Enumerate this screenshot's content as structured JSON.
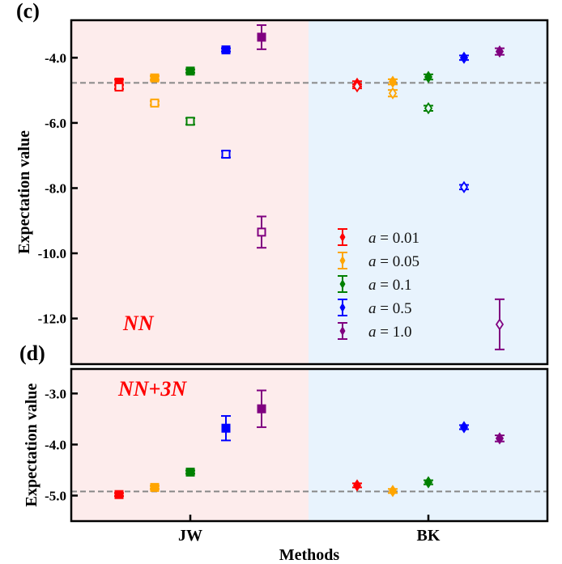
{
  "chart_data": [
    {
      "panel_label": "(c)",
      "type": "scatter",
      "subtype": "errorbar",
      "annotation": "NN",
      "xlabel": "",
      "ylabel": "Expectation value",
      "categories": [
        "JW",
        "BK"
      ],
      "ylim": [
        -13.4,
        -2.85
      ],
      "yticks": [
        -4.0,
        -6.0,
        -8.0,
        -10.0,
        -12.0
      ],
      "ytick_labels": [
        "-4.0",
        "-6.0",
        "-8.0",
        "-10.0",
        "-12.0"
      ],
      "reference_line": -4.77,
      "background_regions": [
        {
          "category": "JW",
          "color": "#fdecec"
        },
        {
          "category": "BK",
          "color": "#e8f3fd"
        }
      ],
      "legend": {
        "placement": "lower-right",
        "entries": [
          {
            "label_var": "a",
            "label_value": "= 0.01",
            "color": "#ff0000"
          },
          {
            "label_var": "a",
            "label_value": "= 0.05",
            "color": "#ffa500"
          },
          {
            "label_var": "a",
            "label_value": "= 0.1",
            "color": "#008000"
          },
          {
            "label_var": "a",
            "label_value": "= 0.5",
            "color": "#0000ff"
          },
          {
            "label_var": "a",
            "label_value": "= 1.0",
            "color": "#800080"
          }
        ]
      },
      "series": [
        {
          "name": "a = 0.01",
          "color": "#ff0000",
          "JW": {
            "filled": [
              -4.75,
              0.08
            ],
            "open": [
              -4.9,
              0.06
            ]
          },
          "BK": {
            "filled": [
              -4.8,
              0.08
            ],
            "open": [
              -4.88,
              0.06
            ]
          }
        },
        {
          "name": "a = 0.05",
          "color": "#ffa500",
          "JW": {
            "filled": [
              -4.62,
              0.06
            ],
            "open": [
              -5.39,
              0.06
            ]
          },
          "BK": {
            "filled": [
              -4.74,
              0.08
            ],
            "open": [
              -5.09,
              0.1
            ]
          }
        },
        {
          "name": "a = 0.1",
          "color": "#008000",
          "JW": {
            "filled": [
              -4.41,
              0.05
            ],
            "open": [
              -5.95,
              0.1
            ]
          },
          "BK": {
            "filled": [
              -4.59,
              0.08
            ],
            "open": [
              -5.55,
              0.08
            ]
          }
        },
        {
          "name": "a = 0.5",
          "color": "#0000ff",
          "JW": {
            "filled": [
              -3.76,
              0.05
            ],
            "open": [
              -6.96,
              0.1
            ]
          },
          "BK": {
            "filled": [
              -4.0,
              0.07
            ],
            "open": [
              -7.97,
              0.07
            ]
          }
        },
        {
          "name": "a = 1.0",
          "color": "#800080",
          "JW": {
            "filled": [
              -3.37,
              0.37
            ],
            "open": [
              -9.35,
              0.48
            ]
          },
          "BK": {
            "filled": [
              -3.81,
              0.1
            ],
            "open": [
              -12.18,
              0.77
            ]
          }
        }
      ]
    },
    {
      "panel_label": "(d)",
      "type": "scatter",
      "subtype": "errorbar",
      "annotation": "NN+3N",
      "xlabel": "Methods",
      "ylabel": "Expectation value",
      "categories": [
        "JW",
        "BK"
      ],
      "ylim": [
        -5.5,
        -2.52
      ],
      "yticks": [
        -3.0,
        -4.0,
        -5.0
      ],
      "ytick_labels": [
        "-3.0",
        "-4.0",
        "-5.0"
      ],
      "reference_line": -4.92,
      "background_regions": [
        {
          "category": "JW",
          "color": "#fdecec"
        },
        {
          "category": "BK",
          "color": "#e8f3fd"
        }
      ],
      "series": [
        {
          "name": "a = 0.01",
          "color": "#ff0000",
          "JW": {
            "filled": [
              -4.98,
              0.03
            ]
          },
          "BK": {
            "filled": [
              -4.8,
              0.04
            ]
          }
        },
        {
          "name": "a = 0.05",
          "color": "#ffa500",
          "JW": {
            "filled": [
              -4.84,
              0.03
            ]
          },
          "BK": {
            "filled": [
              -4.91,
              0.04
            ]
          }
        },
        {
          "name": "a = 0.1",
          "color": "#008000",
          "JW": {
            "filled": [
              -4.54,
              0.03
            ]
          },
          "BK": {
            "filled": [
              -4.74,
              0.04
            ]
          }
        },
        {
          "name": "a = 0.5",
          "color": "#0000ff",
          "JW": {
            "filled": [
              -3.68,
              0.24
            ]
          },
          "BK": {
            "filled": [
              -3.66,
              0.04
            ]
          }
        },
        {
          "name": "a = 1.0",
          "color": "#800080",
          "JW": {
            "filled": [
              -3.3,
              0.36
            ]
          },
          "BK": {
            "filled": [
              -3.88,
              0.06
            ]
          }
        }
      ]
    }
  ]
}
